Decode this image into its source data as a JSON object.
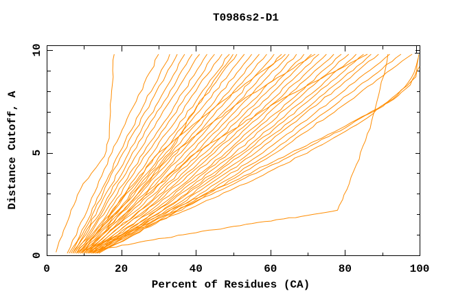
{
  "title": "T0986s2-D1",
  "chart_data": {
    "type": "line",
    "title": "T0986s2-D1",
    "xlabel": "Percent of Residues (CA)",
    "ylabel": "Distance Cutoff, A",
    "xlim": [
      0,
      100
    ],
    "ylim": [
      0,
      10
    ],
    "x_major_ticks": [
      0,
      20,
      40,
      60,
      80,
      100
    ],
    "x_minor_tick_step": 10,
    "y_major_ticks": [
      0,
      5,
      10
    ],
    "y_minor_tick_step": 1,
    "grid": false,
    "legend": "none",
    "series_color": "#ff8c00",
    "axis_color": "#000000",
    "background_color": "#ffffff",
    "curves": [
      [
        [
          5.5,
          0.1
        ],
        [
          8,
          1
        ],
        [
          11.5,
          2.5
        ],
        [
          17.5,
          5
        ],
        [
          24,
          7.5
        ],
        [
          30,
          9.8
        ]
      ],
      [
        [
          6,
          0.1
        ],
        [
          9,
          1
        ],
        [
          13,
          2.5
        ],
        [
          19.5,
          5
        ],
        [
          26.5,
          7.5
        ],
        [
          33,
          9.8
        ]
      ],
      [
        [
          6.5,
          0.1
        ],
        [
          9.5,
          1
        ],
        [
          13.5,
          2.5
        ],
        [
          20.5,
          5
        ],
        [
          28,
          7.5
        ],
        [
          35,
          9.8
        ]
      ],
      [
        [
          7,
          0.1
        ],
        [
          10,
          1
        ],
        [
          14.5,
          2.5
        ],
        [
          22,
          5
        ],
        [
          30,
          7.5
        ],
        [
          37,
          9.8
        ]
      ],
      [
        [
          7,
          0.1
        ],
        [
          10.5,
          1
        ],
        [
          15.5,
          2.5
        ],
        [
          23,
          5
        ],
        [
          31.5,
          7.5
        ],
        [
          39,
          9.8
        ]
      ],
      [
        [
          7.5,
          0.1
        ],
        [
          11,
          1
        ],
        [
          16,
          2.5
        ],
        [
          24.5,
          5
        ],
        [
          33,
          7.5
        ],
        [
          41,
          9.8
        ]
      ],
      [
        [
          7.5,
          0.1
        ],
        [
          11.5,
          1
        ],
        [
          17,
          2.5
        ],
        [
          26,
          5
        ],
        [
          35,
          7.5
        ],
        [
          43,
          9.8
        ]
      ],
      [
        [
          8,
          0.1
        ],
        [
          12,
          1
        ],
        [
          18,
          2.5
        ],
        [
          27,
          5
        ],
        [
          36.5,
          7.5
        ],
        [
          45,
          9.8
        ]
      ],
      [
        [
          8,
          0.1
        ],
        [
          12.5,
          1
        ],
        [
          19,
          2.5
        ],
        [
          28.5,
          5
        ],
        [
          38,
          7.5
        ],
        [
          47,
          9.8
        ]
      ],
      [
        [
          8.5,
          0.1
        ],
        [
          13,
          1
        ],
        [
          19.5,
          2.5
        ],
        [
          30,
          5
        ],
        [
          40,
          7.5
        ],
        [
          49,
          9.8
        ]
      ],
      [
        [
          8.5,
          0.1
        ],
        [
          13,
          1
        ],
        [
          20.5,
          2.5
        ],
        [
          31,
          5
        ],
        [
          41.5,
          7.5
        ],
        [
          51,
          9.8
        ]
      ],
      [
        [
          9,
          0.1
        ],
        [
          13.5,
          1
        ],
        [
          21,
          2.5
        ],
        [
          32,
          5
        ],
        [
          43,
          7.5
        ],
        [
          53,
          9.8
        ]
      ],
      [
        [
          9,
          0.1
        ],
        [
          14,
          1
        ],
        [
          22,
          2.5
        ],
        [
          33.5,
          5
        ],
        [
          45,
          7.5
        ],
        [
          55,
          9.8
        ]
      ],
      [
        [
          9.5,
          0.1
        ],
        [
          14.5,
          1
        ],
        [
          22.5,
          2.5
        ],
        [
          35,
          5
        ],
        [
          46.5,
          7.5
        ],
        [
          57,
          9.8
        ]
      ],
      [
        [
          9.5,
          0.1
        ],
        [
          15,
          1
        ],
        [
          23.5,
          2.5
        ],
        [
          36,
          5
        ],
        [
          48,
          7.5
        ],
        [
          59,
          9.8
        ]
      ],
      [
        [
          10,
          0.1
        ],
        [
          15,
          1
        ],
        [
          24,
          2.5
        ],
        [
          37,
          5
        ],
        [
          50,
          7.5
        ],
        [
          61,
          9.8
        ]
      ],
      [
        [
          10,
          0.1
        ],
        [
          16,
          1
        ],
        [
          25,
          2.5
        ],
        [
          38.5,
          5
        ],
        [
          51.5,
          7.5
        ],
        [
          63,
          9.8
        ]
      ],
      [
        [
          10.5,
          0.1
        ],
        [
          16,
          1
        ],
        [
          26,
          2.5
        ],
        [
          40,
          5
        ],
        [
          53,
          7.5
        ],
        [
          65,
          9.8
        ]
      ],
      [
        [
          10.5,
          0.1
        ],
        [
          17,
          1
        ],
        [
          27,
          2.5
        ],
        [
          41,
          5
        ],
        [
          55,
          7.5
        ],
        [
          67,
          9.8
        ]
      ],
      [
        [
          11,
          0.1
        ],
        [
          17,
          1
        ],
        [
          27.5,
          2.5
        ],
        [
          42.5,
          5
        ],
        [
          56.5,
          7.5
        ],
        [
          69,
          9.8
        ]
      ],
      [
        [
          11,
          0.1
        ],
        [
          18,
          1
        ],
        [
          28.5,
          2.5
        ],
        [
          44,
          5
        ],
        [
          58,
          7.5
        ],
        [
          71,
          9.8
        ]
      ],
      [
        [
          11.5,
          0.1
        ],
        [
          18,
          1
        ],
        [
          29,
          2.5
        ],
        [
          45,
          5
        ],
        [
          60,
          7.5
        ],
        [
          73,
          9.8
        ]
      ],
      [
        [
          11.5,
          0.1
        ],
        [
          19,
          1
        ],
        [
          30,
          2.5
        ],
        [
          46.5,
          5
        ],
        [
          61.5,
          7.5
        ],
        [
          75,
          9.8
        ]
      ],
      [
        [
          12,
          0.1
        ],
        [
          19,
          1
        ],
        [
          31,
          2.5
        ],
        [
          48,
          5
        ],
        [
          63,
          7.5
        ],
        [
          77,
          9.8
        ]
      ],
      [
        [
          12,
          0.1
        ],
        [
          20,
          1
        ],
        [
          32,
          2.5
        ],
        [
          49,
          5
        ],
        [
          65,
          7.5
        ],
        [
          79,
          9.8
        ]
      ],
      [
        [
          12.5,
          0.1
        ],
        [
          20,
          1
        ],
        [
          32.5,
          2.5
        ],
        [
          50.5,
          5
        ],
        [
          66.5,
          7.5
        ],
        [
          81,
          9.8
        ]
      ],
      [
        [
          12.5,
          0.1
        ],
        [
          21,
          1
        ],
        [
          33.5,
          2.5
        ],
        [
          52,
          5
        ],
        [
          68.5,
          7.5
        ],
        [
          83,
          9.8
        ]
      ],
      [
        [
          13,
          0.1
        ],
        [
          21,
          1
        ],
        [
          34,
          2.5
        ],
        [
          53,
          5
        ],
        [
          70,
          7.5
        ],
        [
          85,
          9.8
        ]
      ],
      [
        [
          13,
          0.1
        ],
        [
          21.5,
          1
        ],
        [
          35,
          2.5
        ],
        [
          54.5,
          5
        ],
        [
          72,
          7.5
        ],
        [
          87,
          9.8
        ]
      ],
      [
        [
          13.5,
          0.1
        ],
        [
          22,
          1
        ],
        [
          36,
          2.5
        ],
        [
          56,
          5
        ],
        [
          73.5,
          7.5
        ],
        [
          89,
          9.8
        ]
      ],
      [
        [
          13.5,
          0.1
        ],
        [
          22.5,
          1
        ],
        [
          37,
          2.5
        ],
        [
          58,
          5
        ],
        [
          76,
          7.5
        ],
        [
          92,
          9.8
        ]
      ],
      [
        [
          14,
          0.1
        ],
        [
          23,
          1
        ],
        [
          38,
          2.5
        ],
        [
          60,
          5
        ],
        [
          78.5,
          7.5
        ],
        [
          95,
          9.8
        ]
      ],
      [
        [
          14,
          0.1
        ],
        [
          23.5,
          1
        ],
        [
          39,
          2.5
        ],
        [
          61.5,
          5
        ],
        [
          81,
          7.5
        ],
        [
          98,
          9.8
        ]
      ],
      [
        [
          8,
          0.1
        ],
        [
          13,
          1
        ],
        [
          21,
          2.5
        ],
        [
          33,
          5
        ],
        [
          41,
          7.5
        ],
        [
          50,
          9.8
        ]
      ],
      [
        [
          9,
          0.1
        ],
        [
          13,
          1
        ],
        [
          19,
          2.5
        ],
        [
          30,
          5
        ],
        [
          47,
          7.5
        ],
        [
          64,
          9.8
        ]
      ],
      [
        [
          10,
          0.1
        ],
        [
          15,
          1
        ],
        [
          22,
          2.5
        ],
        [
          34,
          5
        ],
        [
          52,
          7.5
        ],
        [
          72,
          9.8
        ]
      ],
      [
        [
          11,
          0.1
        ],
        [
          16,
          1
        ],
        [
          24,
          2.5
        ],
        [
          40,
          5
        ],
        [
          62,
          7.5
        ],
        [
          86,
          9.8
        ]
      ],
      [
        [
          2.5,
          0.15
        ],
        [
          4.5,
          1.2
        ],
        [
          6.5,
          2.2
        ],
        [
          9,
          3.2
        ],
        [
          12,
          4.0
        ],
        [
          14.5,
          4.6
        ],
        [
          16,
          5.1
        ],
        [
          16.8,
          6.0
        ],
        [
          17.1,
          7.0
        ],
        [
          17.4,
          8.0
        ],
        [
          17.7,
          9.0
        ],
        [
          18.1,
          9.8
        ]
      ],
      [
        [
          12,
          0.2
        ],
        [
          25,
          0.65
        ],
        [
          40,
          1.1
        ],
        [
          55,
          1.55
        ],
        [
          70,
          1.95
        ],
        [
          78,
          2.2
        ],
        [
          80.5,
          3.2
        ],
        [
          83,
          4.4
        ],
        [
          85.5,
          5.6
        ],
        [
          87.5,
          6.8
        ],
        [
          89,
          7.8
        ],
        [
          90.5,
          8.8
        ],
        [
          91.5,
          9.8
        ]
      ],
      [
        [
          11,
          0.3
        ],
        [
          20,
          1.0
        ],
        [
          33,
          2.2
        ],
        [
          50,
          3.6
        ],
        [
          68,
          5.2
        ],
        [
          83,
          6.6
        ],
        [
          93,
          7.6
        ],
        [
          97.5,
          8.3
        ],
        [
          99.2,
          9.0
        ],
        [
          99.8,
          9.8
        ]
      ],
      [
        [
          10,
          0.25
        ],
        [
          18,
          0.8
        ],
        [
          30,
          1.8
        ],
        [
          47,
          3.2
        ],
        [
          65,
          4.8
        ],
        [
          80,
          6.2
        ],
        [
          90,
          7.3
        ],
        [
          96,
          8.2
        ],
        [
          98.5,
          8.9
        ],
        [
          99.6,
          9.6
        ]
      ],
      [
        [
          13,
          0.3
        ],
        [
          24,
          1.2
        ],
        [
          40,
          2.4
        ],
        [
          58,
          3.9
        ],
        [
          74,
          5.4
        ],
        [
          86,
          6.7
        ],
        [
          94,
          7.8
        ],
        [
          99,
          8.7
        ],
        [
          100,
          9.2
        ]
      ]
    ]
  }
}
